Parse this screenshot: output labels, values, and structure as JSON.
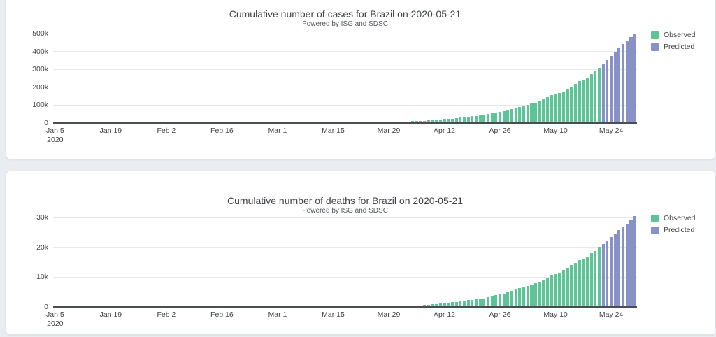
{
  "page": {
    "background": "#e9edf2",
    "card_background": "#ffffff"
  },
  "colors": {
    "observed": "#5cc496",
    "predicted": "#8992c8",
    "axis": "#444444",
    "grid": "#e8e8e8"
  },
  "charts": [
    {
      "title": "Cumulative number of cases for Brazil on 2020-05-21",
      "subtitle": "Powered by ISG and SDSC",
      "legend": [
        {
          "label": "Observed",
          "color": "#5cc496"
        },
        {
          "label": "Predicted",
          "color": "#8992c8"
        }
      ],
      "chart_data": {
        "type": "bar",
        "x_start": "2020-01-05",
        "x_end": "2020-05-30",
        "n_days": 147,
        "ylim": [
          0,
          500000
        ],
        "grid": true,
        "legend_position": "right-top",
        "y_ticks": [
          {
            "value": 0,
            "label": "0"
          },
          {
            "value": 100000,
            "label": "100k"
          },
          {
            "value": 200000,
            "label": "200k"
          },
          {
            "value": 300000,
            "label": "300k"
          },
          {
            "value": 400000,
            "label": "400k"
          },
          {
            "value": 500000,
            "label": "500k"
          }
        ],
        "x_ticks": [
          {
            "day": 0,
            "label": "Jan 5\n2020"
          },
          {
            "day": 14,
            "label": "Jan 19"
          },
          {
            "day": 28,
            "label": "Feb 2"
          },
          {
            "day": 42,
            "label": "Feb 16"
          },
          {
            "day": 56,
            "label": "Mar 1"
          },
          {
            "day": 70,
            "label": "Mar 15"
          },
          {
            "day": 84,
            "label": "Mar 29"
          },
          {
            "day": 98,
            "label": "Apr 12"
          },
          {
            "day": 112,
            "label": "Apr 26"
          },
          {
            "day": 126,
            "label": "May 10"
          },
          {
            "day": 140,
            "label": "May 24"
          }
        ],
        "series": [
          {
            "name": "Observed",
            "color": "#5cc496",
            "start_date": "2020-02-26",
            "start_index": 52,
            "values": [
              1,
              1,
              1,
              2,
              2,
              2,
              2,
              4,
              9,
              13,
              19,
              25,
              25,
              34,
              52,
              77,
              98,
              121,
              200,
              234,
              291,
              428,
              621,
              904,
              1128,
              1546,
              1891,
              2201,
              2433,
              2915,
              3417,
              3904,
              4256,
              4579,
              5717,
              6836,
              8044,
              9056,
              10278,
              11130,
              12056,
              13717,
              15927,
              17857,
              19638,
              20727,
              22169,
              23430,
              25262,
              28320,
              30425,
              33682,
              36599,
              38654,
              40581,
              43079,
              45757,
              49492,
              52995,
              58509,
              61888,
              66501,
              71886,
              78162,
              85380,
              91589,
              96559,
              101147,
              107780,
              114715,
              125218,
              135106,
              145328,
              155939,
              162699,
              168331,
              177589,
              188974,
              202918,
              218223,
              233142,
              241080,
              254220,
              271628,
              291579,
              310087
            ]
          },
          {
            "name": "Predicted",
            "color": "#8992c8",
            "start_date": "2020-05-22",
            "start_index": 138,
            "values": [
              330000,
              352000,
              374000,
              396000,
              418000,
              440000,
              461000,
              481000,
              502000
            ]
          }
        ]
      }
    },
    {
      "title": "Cumulative number of deaths for Brazil on 2020-05-21",
      "subtitle": "Powered by ISG and SDSC",
      "legend": [
        {
          "label": "Observed",
          "color": "#5cc496"
        },
        {
          "label": "Predicted",
          "color": "#8992c8"
        }
      ],
      "chart_data": {
        "type": "bar",
        "x_start": "2020-01-05",
        "x_end": "2020-05-30",
        "n_days": 147,
        "ylim": [
          0,
          30000
        ],
        "grid": true,
        "legend_position": "right-top",
        "y_ticks": [
          {
            "value": 0,
            "label": "0"
          },
          {
            "value": 10000,
            "label": "10k"
          },
          {
            "value": 20000,
            "label": "20k"
          },
          {
            "value": 30000,
            "label": "30k"
          }
        ],
        "x_ticks": [
          {
            "day": 0,
            "label": "Jan 5\n2020"
          },
          {
            "day": 14,
            "label": "Jan 19"
          },
          {
            "day": 28,
            "label": "Feb 2"
          },
          {
            "day": 42,
            "label": "Feb 16"
          },
          {
            "day": 56,
            "label": "Mar 1"
          },
          {
            "day": 70,
            "label": "Mar 15"
          },
          {
            "day": 84,
            "label": "Mar 29"
          },
          {
            "day": 98,
            "label": "Apr 12"
          },
          {
            "day": 112,
            "label": "Apr 26"
          },
          {
            "day": 126,
            "label": "May 10"
          },
          {
            "day": 140,
            "label": "May 24"
          }
        ],
        "series": [
          {
            "name": "Observed",
            "color": "#5cc496",
            "start_date": "2020-03-17",
            "start_index": 72,
            "values": [
              1,
              3,
              6,
              11,
              15,
              25,
              34,
              46,
              59,
              77,
              92,
              111,
              136,
              159,
              201,
              240,
              324,
              359,
              445,
              486,
              564,
              686,
              800,
              953,
              1056,
              1124,
              1223,
              1328,
              1532,
              1736,
              1924,
              2141,
              2347,
              2462,
              2575,
              2741,
              2906,
              3313,
              3670,
              4045,
              4205,
              4543,
              5017,
              5466,
              5901,
              6329,
              6750,
              7025,
              7321,
              7921,
              8536,
              9146,
              9897,
              10627,
              11123,
              11519,
              12400,
              13149,
              13993,
              14817,
              15633,
              16118,
              16792,
              17971,
              18859,
              20047
            ]
          },
          {
            "name": "Predicted",
            "color": "#8992c8",
            "start_date": "2020-05-22",
            "start_index": 138,
            "values": [
              21100,
              22250,
              23400,
              24550,
              25700,
              26850,
              28000,
              29200,
              30400
            ]
          }
        ]
      }
    }
  ]
}
